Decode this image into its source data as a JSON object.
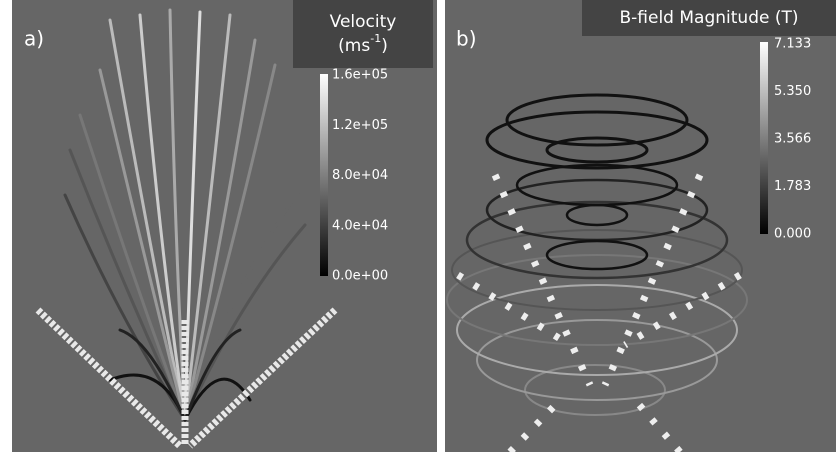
{
  "panels": [
    {
      "label": "a)",
      "colorbar": {
        "title": "Velocity",
        "unit_prefix": "(ms",
        "unit_exponent": "-1",
        "unit_suffix": ")",
        "ticks": [
          "1.6e+05",
          "1.2e+05",
          "8.0e+04",
          "4.0e+04",
          "0.0e+00"
        ]
      }
    },
    {
      "label": "b)",
      "colorbar": {
        "title": "B-field Magnitude (T)",
        "ticks": [
          "7.133",
          "5.350",
          "3.566",
          "1.783",
          "0.000"
        ]
      }
    }
  ]
}
